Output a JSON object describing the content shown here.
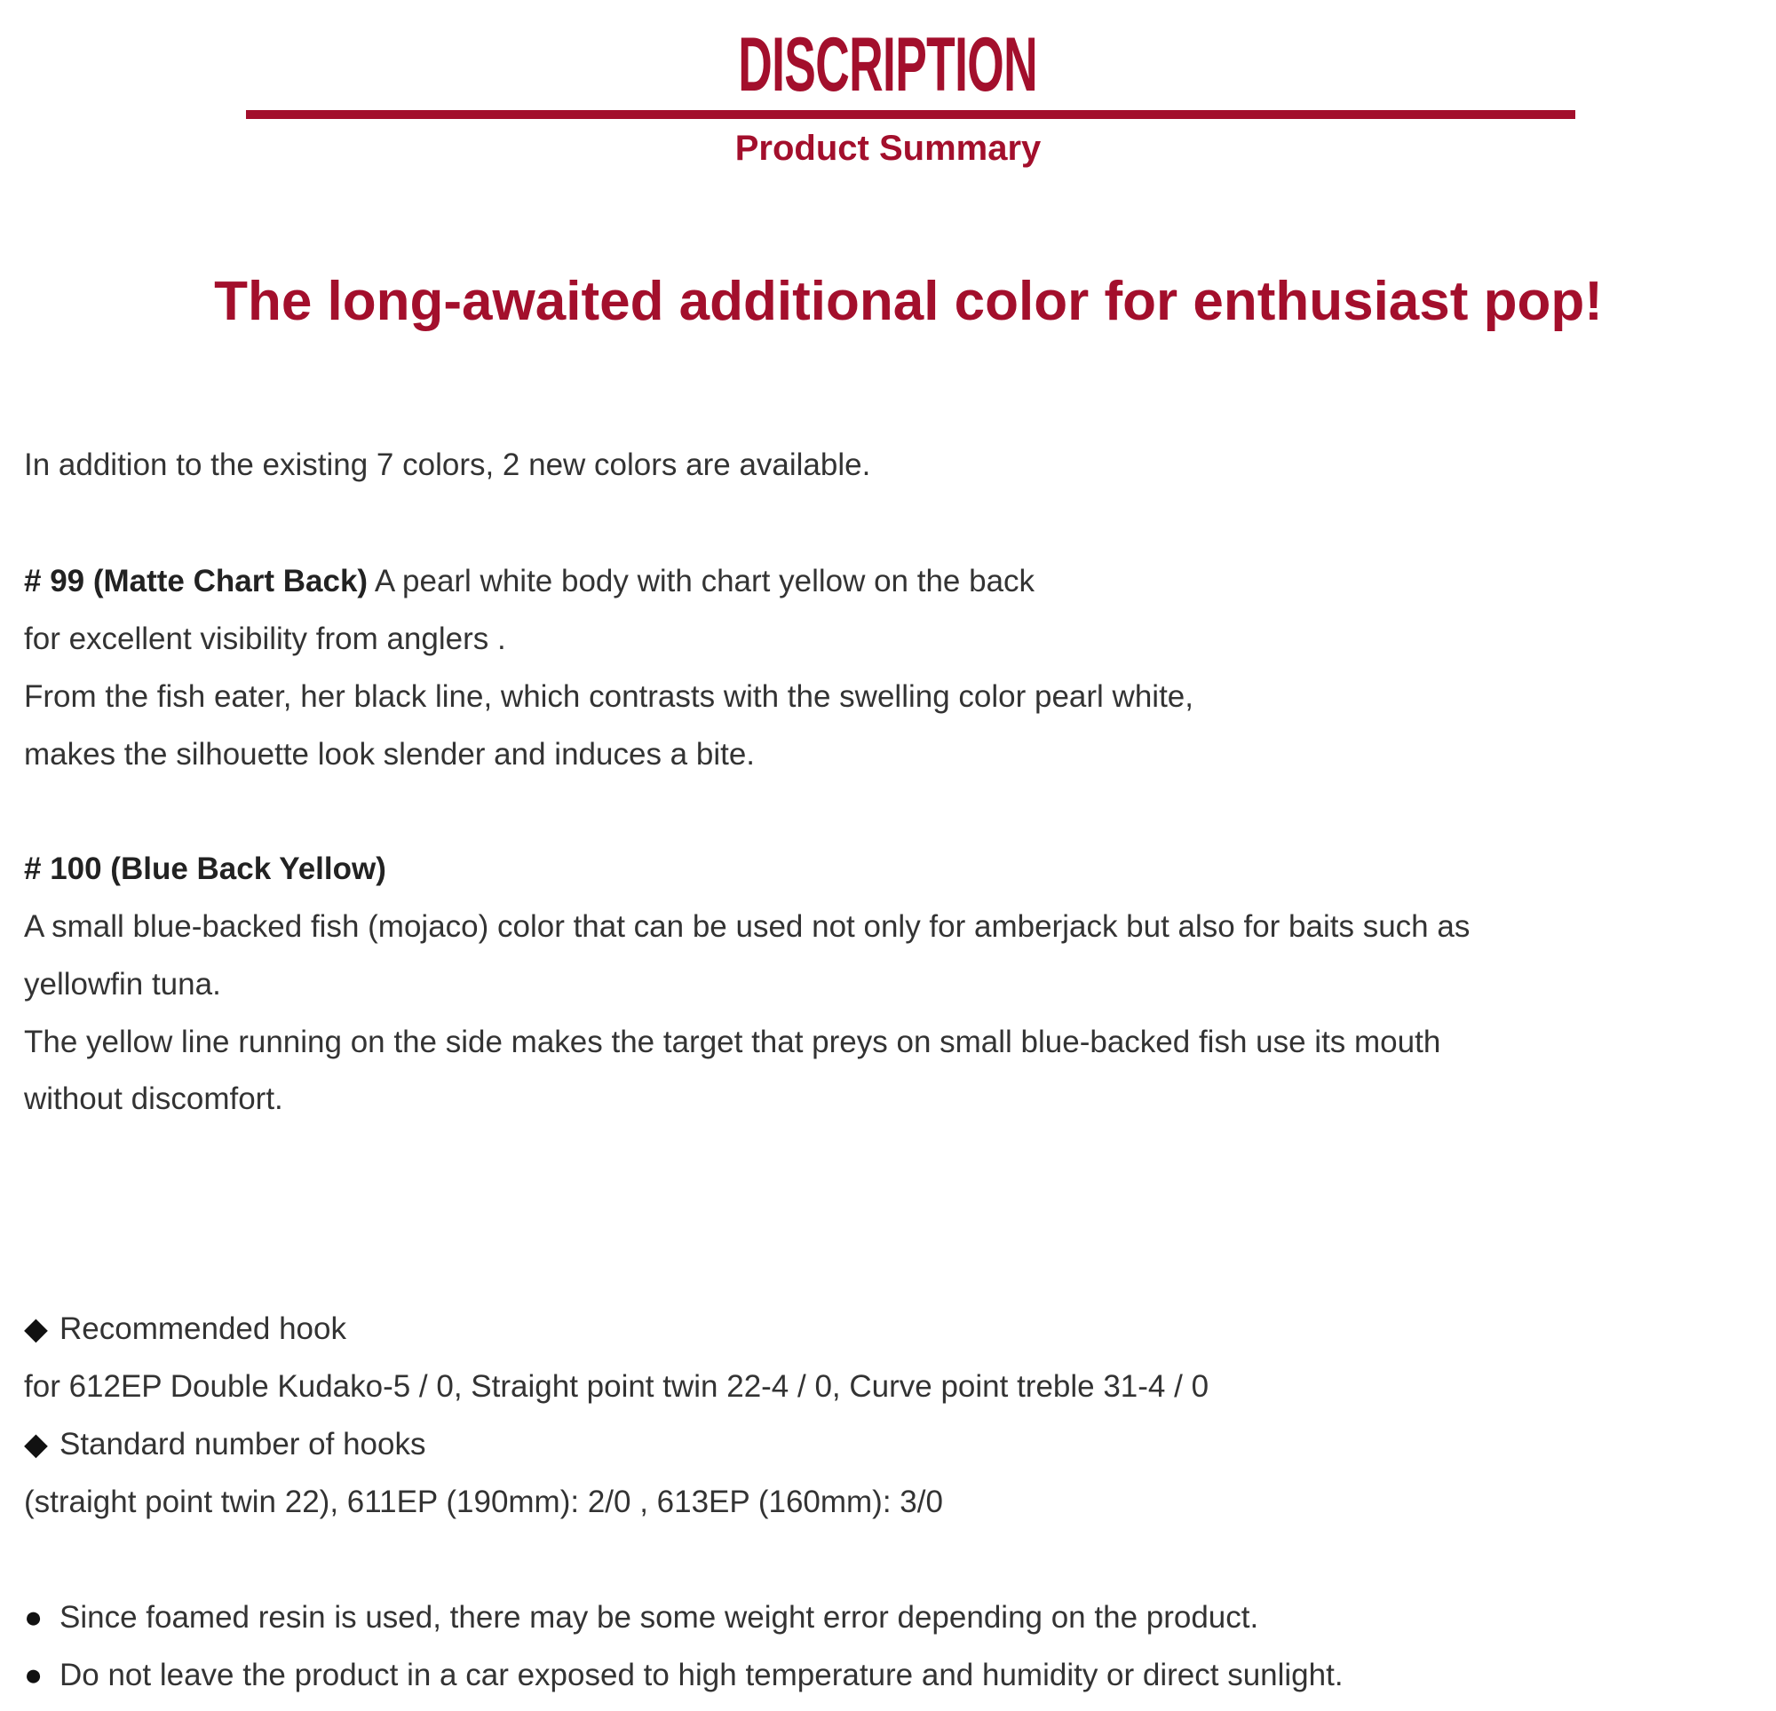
{
  "colors": {
    "accent": "#a30f2c",
    "text": "#333333"
  },
  "header": {
    "title": "DISCRIPTION",
    "subtitle": "Product Summary"
  },
  "headline": "The long-awaited additional color for enthusiast pop!",
  "intro": "In addition to the existing 7 colors, 2 new colors are available.",
  "color99": {
    "label": "# 99 (Matte Chart Back)",
    "lines": [
      " A pearl white body with chart yellow on the back",
      "for excellent visibility from anglers .",
      "From the fish eater, her black line, which contrasts with the swelling color pearl white,",
      "makes the silhouette look slender and induces a bite."
    ]
  },
  "color100": {
    "label": "# 100 (Blue Back Yellow)",
    "lines": [
      "A small blue-backed fish (mojaco) color that can be used not only for amberjack but also for baits such as",
      "yellowfin tuna.",
      "The yellow line running on the side makes the target that preys on small blue-backed fish use its mouth",
      "without discomfort."
    ]
  },
  "specs": [
    {
      "icon": "diamond-icon",
      "glyph": "◆",
      "heading": "Recommended hook",
      "text": "for 612EP Double Kudako-5 / 0, Straight point twin 22-4 / 0, Curve point treble 31-4 / 0"
    },
    {
      "icon": "diamond-icon",
      "glyph": "◆",
      "heading": "Standard number of hooks",
      "text": "(straight point twin 22), 611EP (190mm): 2/0 , 613EP (160mm): 3/0"
    }
  ],
  "notes": [
    {
      "icon": "bullet-circle-icon",
      "glyph": "●",
      "text": "Since foamed resin is used, there may be some weight error depending on the product."
    },
    {
      "icon": "bullet-circle-icon",
      "glyph": "●",
      "text": "Do not leave the product in a car exposed to high temperature and humidity or direct sunlight."
    }
  ]
}
